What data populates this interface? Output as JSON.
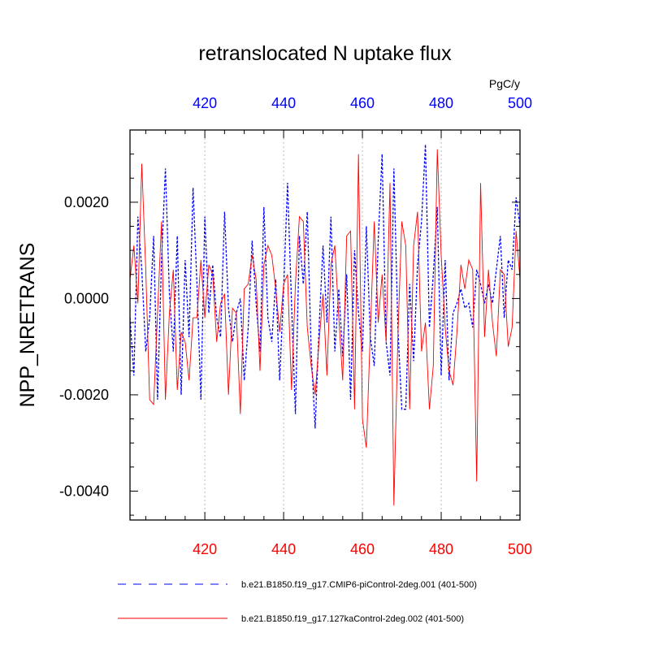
{
  "chart_data": {
    "type": "line",
    "title": "retranslocated N uptake flux",
    "units": "PgC/y",
    "ylabel": "NPP_NRETRANS",
    "xlim": [
      401,
      500
    ],
    "ylim": [
      -0.0046,
      0.0035
    ],
    "x_ticks": [
      420,
      440,
      460,
      480,
      500
    ],
    "x_tick_labels": [
      "420",
      "440",
      "460",
      "480",
      "500"
    ],
    "y_ticks": [
      -0.004,
      -0.002,
      0.0,
      0.002
    ],
    "y_tick_labels": [
      "-0.0040",
      "-0.0020",
      "0.0000",
      "0.0020"
    ],
    "x_top_color": "#0000ff",
    "x_bottom_color": "#ff0000",
    "grid": "vertical dotted at labeled x ticks",
    "legend_position": "bottom",
    "x": [
      401,
      402,
      403,
      404,
      405,
      406,
      407,
      408,
      409,
      410,
      411,
      412,
      413,
      414,
      415,
      416,
      417,
      418,
      419,
      420,
      421,
      422,
      423,
      424,
      425,
      426,
      427,
      428,
      429,
      430,
      431,
      432,
      433,
      434,
      435,
      436,
      437,
      438,
      439,
      440,
      441,
      442,
      443,
      444,
      445,
      446,
      447,
      448,
      449,
      450,
      451,
      452,
      453,
      454,
      455,
      456,
      457,
      458,
      459,
      460,
      461,
      462,
      463,
      464,
      465,
      466,
      467,
      468,
      469,
      470,
      471,
      472,
      473,
      474,
      475,
      476,
      477,
      478,
      479,
      480,
      481,
      482,
      483,
      484,
      485,
      486,
      487,
      488,
      489,
      490,
      491,
      492,
      493,
      494,
      495,
      496,
      497,
      498,
      499,
      500
    ],
    "series": [
      {
        "name": "b.e21.B1850.f19_g17.CMIP6-piControl-2deg.001 (401-500)",
        "color": "#0000ff",
        "style": "dashed",
        "values": [
          -0.0004,
          -0.0016,
          0.0017,
          0.0006,
          -0.0011,
          -0.0004,
          0.0013,
          -0.0021,
          0.0008,
          0.0027,
          0.0001,
          -0.0011,
          0.0013,
          -0.002,
          0.0008,
          -0.0008,
          0.0023,
          0.0003,
          -0.0021,
          0.0017,
          -0.0003,
          0.0007,
          -0.0004,
          -0.0008,
          0.0018,
          -0.0002,
          -0.0009,
          -0.0003,
          0.0,
          -0.0017,
          -0.0006,
          0.0012,
          -0.0001,
          -0.0011,
          0.0019,
          -0.0004,
          -0.0009,
          0.0004,
          -0.0017,
          0.0002,
          0.0024,
          -0.0001,
          -0.0024,
          0.0013,
          0.0003,
          0.0018,
          -0.0011,
          -0.0027,
          -0.0006,
          0.0011,
          -0.0005,
          0.0017,
          -0.0011,
          0.0002,
          -0.0012,
          0.0005,
          -0.0021,
          0.001,
          -0.0003,
          -0.0011,
          0.0015,
          -0.0008,
          -0.0014,
          0.0012,
          0.003,
          -0.0009,
          -0.0016,
          0.0027,
          -0.0006,
          -0.0023,
          -0.0023,
          0.0003,
          -0.0013,
          0.0007,
          0.0016,
          0.0032,
          -0.0006,
          0.0005,
          0.0019,
          -0.0016,
          0.0008,
          -0.0017,
          -0.0003,
          -0.0001,
          0.0002,
          -0.0002,
          -0.0001,
          -0.0006,
          0.0006,
          0.0003,
          -0.0001,
          0.0003,
          -0.0001,
          0.0006,
          0.0013,
          -0.0004,
          0.0008,
          0.0006,
          0.0021,
          0.0015
        ]
      },
      {
        "name": "b.e21.B1850.f19_g17.127kaControl-2deg.002 (401-500)",
        "color": "#ff0000",
        "style": "solid",
        "values": [
          0.0004,
          0.0011,
          -0.0001,
          0.0028,
          0.0006,
          -0.0021,
          -0.0022,
          -0.0003,
          0.0016,
          -0.0021,
          -0.0003,
          0.0006,
          -0.0019,
          -0.0007,
          -0.0009,
          -0.0017,
          -0.0004,
          -0.0004,
          0.0008,
          -0.0004,
          0.0007,
          0.0005,
          -0.0009,
          -0.0001,
          0.0001,
          -0.002,
          -0.0002,
          -0.0003,
          -0.0024,
          0.0002,
          0.0003,
          0.0009,
          0.0004,
          -0.0015,
          0.0007,
          0.0011,
          0.0009,
          0.0002,
          -0.0007,
          0.0003,
          0.0005,
          -0.0019,
          0.0003,
          0.0017,
          0.0016,
          -0.0006,
          -0.0014,
          -0.002,
          -0.0009,
          0.0001,
          -0.0016,
          0.0007,
          0.0011,
          -0.0004,
          -0.0017,
          0.0013,
          0.0014,
          -0.0023,
          0.003,
          -0.0025,
          -0.0031,
          -0.0007,
          0.0016,
          -0.0005,
          0.0005,
          -0.0009,
          0.0024,
          -0.0043,
          -0.0008,
          0.0016,
          0.0011,
          -0.0023,
          0.0011,
          0.0018,
          -0.0011,
          -0.0005,
          -0.0023,
          -0.0014,
          0.0031,
          0.0009,
          -0.0006,
          -0.0015,
          -0.0018,
          -0.0007,
          0.0007,
          0.0002,
          0.0008,
          0.0006,
          -0.0038,
          0.0024,
          -0.0008,
          0.0006,
          -0.0005,
          -0.0012,
          0.0006,
          0.0005,
          -0.001,
          -0.0006,
          0.0014,
          0.0004
        ]
      }
    ]
  }
}
